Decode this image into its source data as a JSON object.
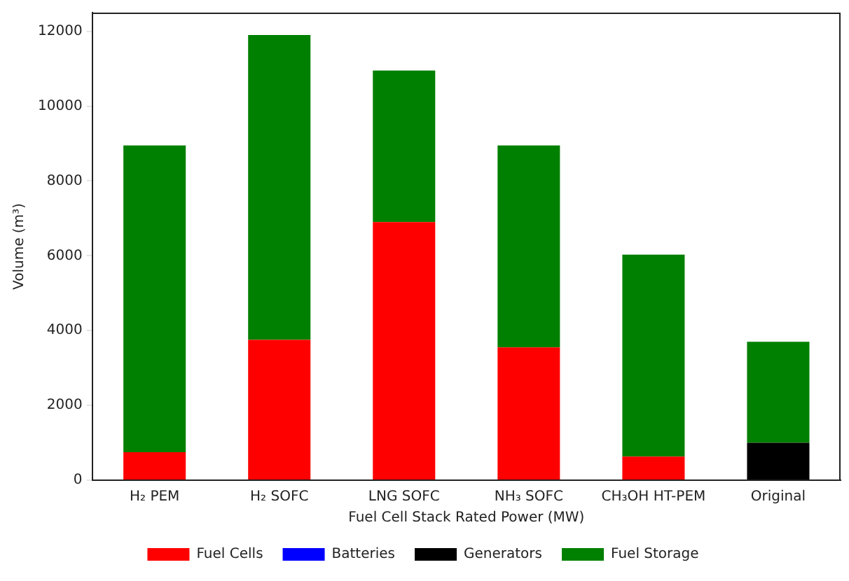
{
  "chart_data": {
    "type": "bar",
    "stacked": true,
    "xlabel": "Fuel Cell Stack Rated Power (MW)",
    "ylabel": "Volume (m³)",
    "categories": [
      "H₂ PEM",
      "H₂ SOFC",
      "LNG SOFC",
      "NH₃ SOFC",
      "CH₃OH HT-PEM",
      "Original"
    ],
    "series": [
      {
        "name": "Fuel Cells",
        "color": "#ff0000",
        "values": [
          750,
          3750,
          6900,
          3550,
          630,
          0
        ]
      },
      {
        "name": "Batteries",
        "color": "#0000ff",
        "values": [
          0,
          0,
          0,
          0,
          0,
          0
        ]
      },
      {
        "name": "Generators",
        "color": "#000000",
        "values": [
          0,
          0,
          0,
          0,
          0,
          1000
        ]
      },
      {
        "name": "Fuel Storage",
        "color": "#008000",
        "values": [
          8200,
          8150,
          4050,
          5400,
          5400,
          2700
        ]
      }
    ],
    "ylim": [
      0,
      12500
    ],
    "yticks": [
      0,
      2000,
      4000,
      6000,
      8000,
      10000,
      12000
    ],
    "grid": false,
    "legend": "bottom"
  }
}
